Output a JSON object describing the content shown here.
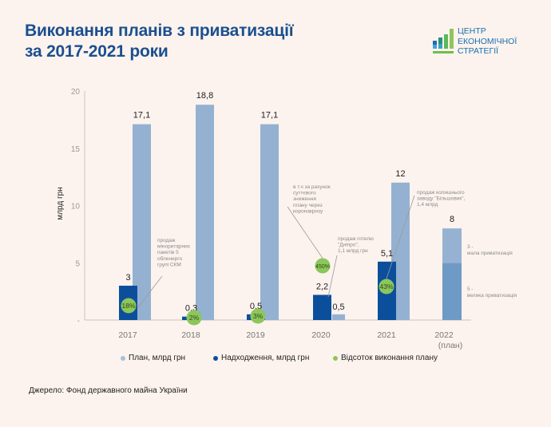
{
  "title": {
    "line1": "Виконання планів з приватизації",
    "line2": "за 2017-2021 роки"
  },
  "logo": {
    "line1": "ЦЕНТР",
    "line2": "ЕКОНОМІЧНОЇ",
    "line3": "СТРАТЕГІЇ",
    "icon": "bar-chart-logo-icon"
  },
  "colors": {
    "background": "#fcf3ee",
    "title": "#1b4f8f",
    "plan": "#95b1d1",
    "receipts": "#0b4f9c",
    "percent": "#8dc65a",
    "plan_2022_large": "#6f9ac5",
    "plan_2022_small": "#96b2d2",
    "annotation": "#8a8a8a"
  },
  "chart_data": {
    "type": "bar",
    "ylabel": "млрд грн",
    "xlabel": "",
    "ylim": [
      0,
      20
    ],
    "yticks": [
      {
        "value": 0,
        "label": "-"
      },
      {
        "value": 5,
        "label": "5"
      },
      {
        "value": 10,
        "label": "10"
      },
      {
        "value": 15,
        "label": "15"
      },
      {
        "value": 20,
        "label": "20"
      }
    ],
    "grid": false,
    "categories": [
      "2017",
      "2018",
      "2019",
      "2020",
      "2021",
      "2022"
    ],
    "category_sublabels": [
      "",
      "",
      "",
      "",
      "",
      "(план)"
    ],
    "series": [
      {
        "name": "Надходження,  млрд грн",
        "key": "receipts",
        "values": [
          3,
          0.3,
          0.5,
          2.2,
          5.1,
          null
        ],
        "labels": [
          "3",
          "0,3",
          "0,5",
          "2,2",
          "5,1",
          ""
        ]
      },
      {
        "name": "План,  млрд грн",
        "key": "plan",
        "values": [
          17.1,
          18.8,
          17.1,
          0.5,
          12,
          8
        ],
        "labels": [
          "17,1",
          "18,8",
          "17,1",
          "0,5",
          "12",
          "8"
        ]
      }
    ],
    "plan_2022_breakdown": [
      {
        "value": 5,
        "label": "5 - велика приватизація"
      },
      {
        "value": 3,
        "label": "3 - мала приватизація"
      }
    ],
    "percent_series": {
      "name": "Відсоток виконання плану",
      "values": [
        "18%",
        "2%",
        "3%",
        "450%",
        "43%",
        ""
      ]
    },
    "annotations": [
      {
        "category": "2017",
        "lines": [
          "продаж",
          "міноритарних",
          "пакетів 5",
          "обленерго",
          "групі СКМ"
        ]
      },
      {
        "category": "2020",
        "lines": [
          "в т.ч за рахунок",
          "суттєвого",
          "зниження",
          "плану через",
          "коронакризу"
        ]
      },
      {
        "category": "2020",
        "lines": [
          "продаж готелю",
          "\"Дніпро\",",
          "1,1 млрд грн"
        ]
      },
      {
        "category": "2021",
        "lines": [
          "продаж колишнього",
          "заводу \"Більшовик\",",
          "1,4 млрд"
        ]
      }
    ],
    "legend": [
      {
        "label": "План,  млрд грн",
        "color_key": "plan"
      },
      {
        "label": "Надходження,  млрд грн",
        "color_key": "receipts"
      },
      {
        "label": "Відсоток виконання плану",
        "color_key": "percent"
      }
    ],
    "legend_position": "bottom"
  },
  "source": "Джерело: Фонд державного майна України"
}
